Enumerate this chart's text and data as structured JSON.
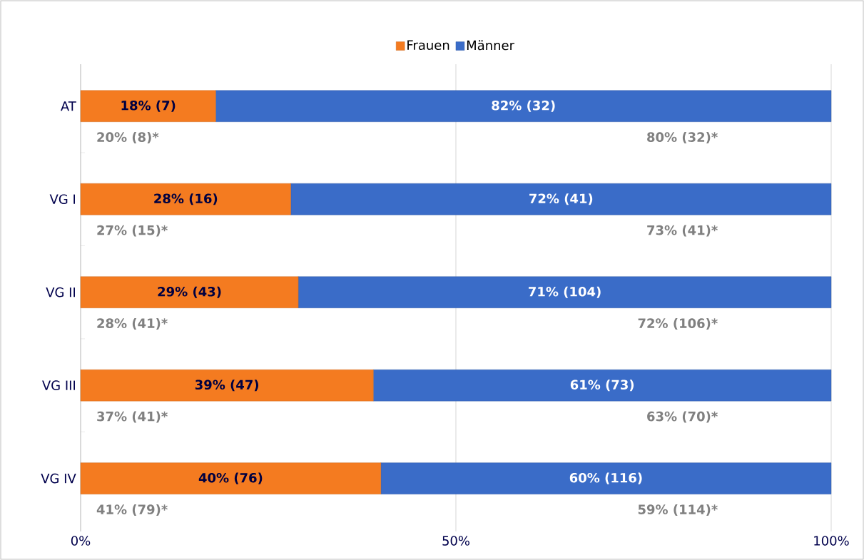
{
  "chart_data": {
    "type": "bar",
    "orientation": "horizontal",
    "stacked": true,
    "categories": [
      "AT",
      "VG I",
      "VG II",
      "VG III",
      "VG IV"
    ],
    "series": [
      {
        "name": "Frauen",
        "color": "#f47b20",
        "values": [
          18,
          28,
          29,
          39,
          40
        ],
        "value_labels": [
          "18% (7)",
          "28% (16)",
          "29% (43)",
          "39% (47)",
          "40% (76)"
        ]
      },
      {
        "name": "Männer",
        "color": "#3a6cc8",
        "values": [
          82,
          72,
          71,
          61,
          60
        ],
        "value_labels": [
          "82% (32)",
          "72% (41)",
          "71% (104)",
          "61% (73)",
          "60% (116)"
        ]
      }
    ],
    "xlim": [
      0,
      100
    ],
    "xticks": [
      {
        "value": 0,
        "label": "0%"
      },
      {
        "value": 50,
        "label": "50%"
      },
      {
        "value": 100,
        "label": "100%"
      }
    ],
    "grid": "x",
    "legend": "top",
    "annotations": [
      "20% (8)*",
      "80% (32)*",
      "27% (15)*",
      "73% (41)*",
      "28% (41)*",
      "72% (106)*",
      "37% (41)*",
      "63% (70)*",
      "41% (79)*",
      "59% (114)*"
    ]
  }
}
